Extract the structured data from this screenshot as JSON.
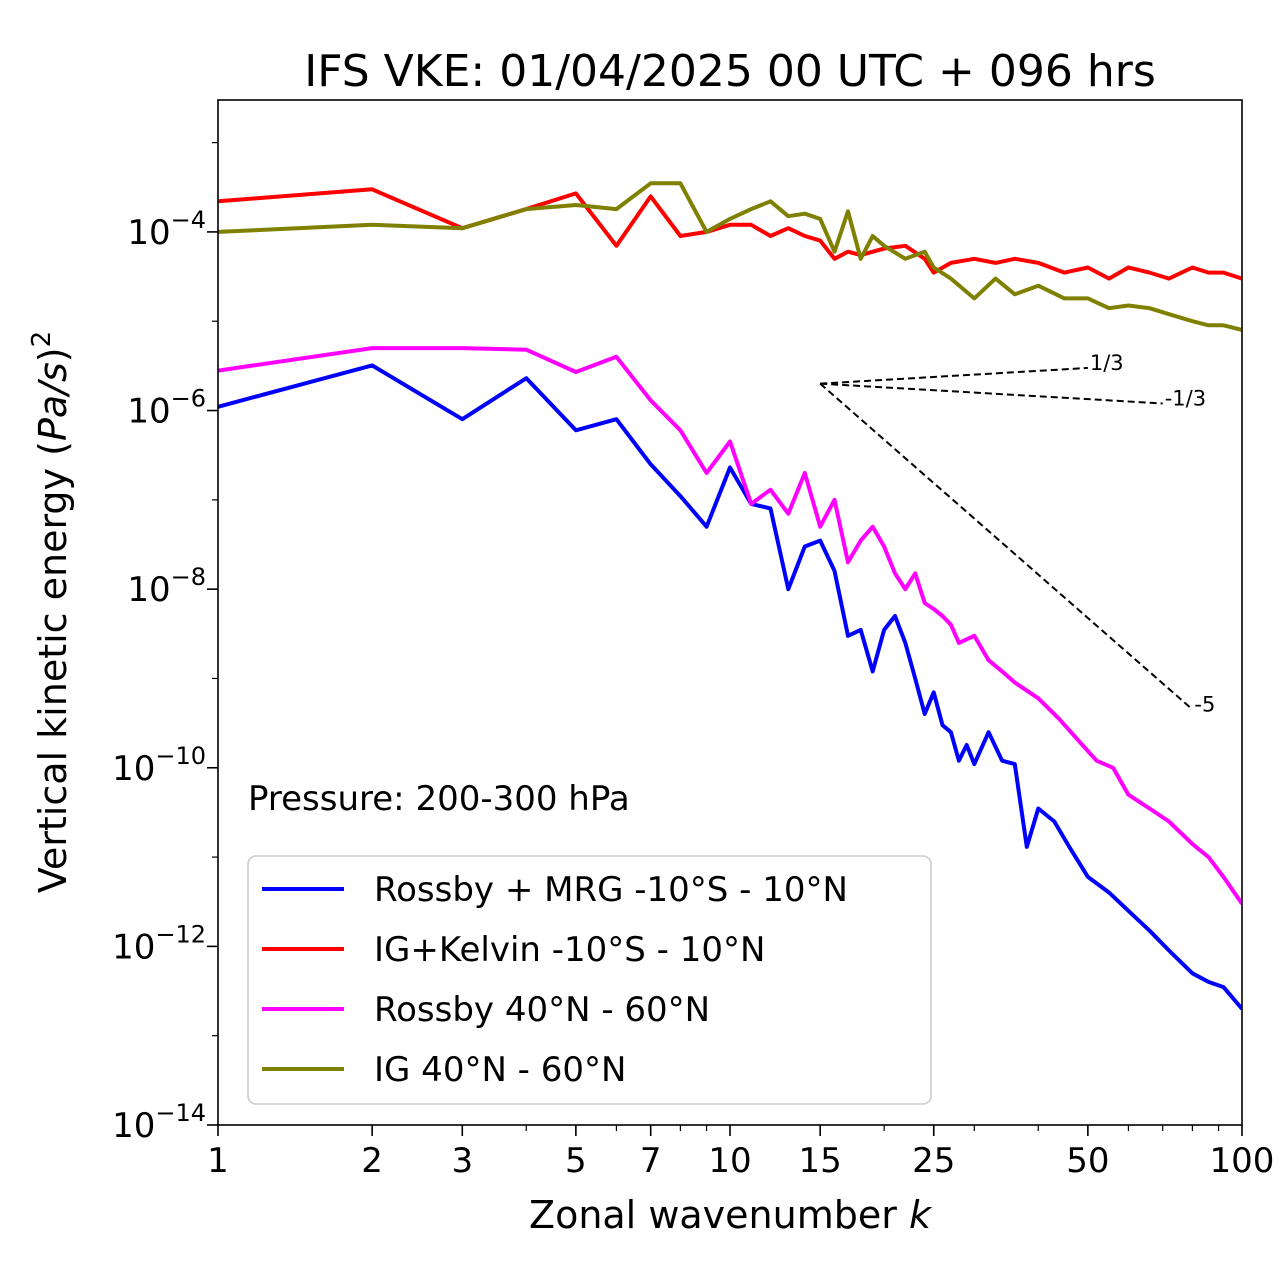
{
  "chart_data": {
    "type": "line",
    "title": "IFS VKE: 01/04/2025 00 UTC + 096 hrs",
    "xlabel_main": "Zonal wavenumber ",
    "xlabel_var": "k",
    "ylabel_main": "Vertical kinetic energy (",
    "ylabel_var": "Pa/s",
    "ylabel_end": ")",
    "ylabel_sup": "2",
    "x_scale": "log",
    "y_scale": "log",
    "xlim": [
      1,
      100
    ],
    "ylim": [
      1e-14,
      0.003
    ],
    "x_ticks": [
      1,
      2,
      3,
      5,
      7,
      10,
      15,
      25,
      50,
      100
    ],
    "x_tick_labels": [
      "1",
      "2",
      "3",
      "5",
      "7",
      "10",
      "15",
      "25",
      "50",
      "100"
    ],
    "y_ticks": [
      {
        "value": 1e-14,
        "base": "10",
        "exp": "−14"
      },
      {
        "value": 1e-12,
        "base": "10",
        "exp": "−12"
      },
      {
        "value": 1e-10,
        "base": "10",
        "exp": "−10"
      },
      {
        "value": 1e-08,
        "base": "10",
        "exp": "−8"
      },
      {
        "value": 1e-06,
        "base": "10",
        "exp": "−6"
      },
      {
        "value": 0.0001,
        "base": "10",
        "exp": "−4"
      }
    ],
    "annotation": "Pressure: 200-300 hPa",
    "legend_position": "lower-left",
    "grid": false,
    "series": [
      {
        "name": "Rossby + MRG -10°S - 10°N",
        "color": "#0000ff",
        "x": [
          1,
          2,
          3,
          4,
          5,
          6,
          7,
          8,
          9,
          10,
          11,
          12,
          13,
          14,
          15,
          16,
          17,
          18,
          19,
          20,
          21,
          22,
          23,
          24,
          25,
          26,
          27,
          28,
          29,
          30,
          32,
          34,
          36,
          38,
          40,
          43,
          46,
          50,
          55,
          60,
          66,
          72,
          80,
          86,
          92,
          100
        ],
        "y": [
          1.1e-06,
          3.2e-06,
          8e-07,
          2.3e-06,
          6e-07,
          8e-07,
          2.5e-07,
          1.1e-07,
          5e-08,
          2.3e-07,
          9e-08,
          8e-08,
          1e-08,
          3e-08,
          3.5e-08,
          1.6e-08,
          3e-09,
          3.5e-09,
          1.2e-09,
          3.5e-09,
          5e-09,
          2.5e-09,
          1e-09,
          4e-10,
          7e-10,
          3e-10,
          2.5e-10,
          1.2e-10,
          1.8e-10,
          1.1e-10,
          2.5e-10,
          1.2e-10,
          1.1e-10,
          1.3e-11,
          3.5e-11,
          2.5e-11,
          1.3e-11,
          6e-12,
          4e-12,
          2.5e-12,
          1.5e-12,
          9e-13,
          5e-13,
          4e-13,
          3.5e-13,
          2e-13
        ]
      },
      {
        "name": "IG+Kelvin -10°S - 10°N",
        "color": "#ff0000",
        "x": [
          1,
          2,
          3,
          4,
          5,
          6,
          7,
          8,
          9,
          10,
          11,
          12,
          13,
          14,
          15,
          16,
          17,
          18,
          20,
          22,
          24,
          25,
          27,
          30,
          33,
          36,
          40,
          45,
          50,
          55,
          60,
          66,
          72,
          80,
          86,
          92,
          100
        ],
        "y": [
          0.00022,
          0.0003,
          0.00011,
          0.00018,
          0.00027,
          7e-05,
          0.00025,
          9e-05,
          0.0001,
          0.00012,
          0.00012,
          9e-05,
          0.00011,
          9e-05,
          8e-05,
          5e-05,
          6e-05,
          5.5e-05,
          6.5e-05,
          7e-05,
          5e-05,
          3.5e-05,
          4.5e-05,
          5e-05,
          4.5e-05,
          5e-05,
          4.5e-05,
          3.5e-05,
          4e-05,
          3e-05,
          4e-05,
          3.5e-05,
          3e-05,
          4e-05,
          3.5e-05,
          3.5e-05,
          3e-05
        ]
      },
      {
        "name": "Rossby 40°N - 60°N",
        "color": "#ff00ff",
        "x": [
          1,
          2,
          3,
          4,
          5,
          6,
          7,
          8,
          9,
          10,
          11,
          12,
          13,
          14,
          15,
          16,
          17,
          18,
          19,
          20,
          21,
          22,
          23,
          24,
          25,
          26,
          27,
          28,
          30,
          32,
          34,
          36,
          40,
          44,
          48,
          52,
          56,
          60,
          66,
          72,
          80,
          86,
          92,
          100
        ],
        "y": [
          2.8e-06,
          5e-06,
          5e-06,
          4.8e-06,
          2.7e-06,
          4e-06,
          1.3e-06,
          6e-07,
          2e-07,
          4.5e-07,
          9e-08,
          1.3e-07,
          7e-08,
          2e-07,
          5e-08,
          1e-07,
          2e-08,
          3.5e-08,
          5e-08,
          3e-08,
          1.5e-08,
          1e-08,
          1.5e-08,
          7e-09,
          6e-09,
          5e-09,
          4e-09,
          2.5e-09,
          3e-09,
          1.6e-09,
          1.2e-09,
          9e-10,
          6e-10,
          3.5e-10,
          2e-10,
          1.2e-10,
          1e-10,
          5e-11,
          3.5e-11,
          2.5e-11,
          1.4e-11,
          1e-11,
          6e-12,
          3e-12
        ]
      },
      {
        "name": "IG 40°N - 60°N",
        "color": "#808000",
        "x": [
          1,
          2,
          3,
          4,
          5,
          6,
          7,
          8,
          9,
          10,
          11,
          12,
          13,
          14,
          15,
          16,
          17,
          18,
          19,
          20,
          22,
          24,
          25,
          27,
          30,
          33,
          36,
          40,
          45,
          50,
          55,
          60,
          66,
          72,
          80,
          86,
          92,
          100
        ],
        "y": [
          0.0001,
          0.00012,
          0.00011,
          0.00018,
          0.0002,
          0.00018,
          0.00035,
          0.00035,
          0.0001,
          0.00014,
          0.00018,
          0.00022,
          0.00015,
          0.00016,
          0.00014,
          6e-05,
          0.00017,
          5e-05,
          9e-05,
          7e-05,
          5e-05,
          6e-05,
          4e-05,
          3e-05,
          1.8e-05,
          3e-05,
          2e-05,
          2.5e-05,
          1.8e-05,
          1.8e-05,
          1.4e-05,
          1.5e-05,
          1.4e-05,
          1.2e-05,
          1e-05,
          9e-06,
          9e-06,
          8e-06
        ]
      }
    ],
    "reference_lines": [
      {
        "label": "1/3",
        "x": [
          15,
          50
        ],
        "y": [
          2e-06,
          3e-06
        ]
      },
      {
        "label": "-1/3",
        "x": [
          15,
          70
        ],
        "y": [
          2e-06,
          1.2e-06
        ]
      },
      {
        "label": "-5",
        "x": [
          15,
          80
        ],
        "y": [
          2e-06,
          4.5e-10
        ]
      }
    ]
  }
}
